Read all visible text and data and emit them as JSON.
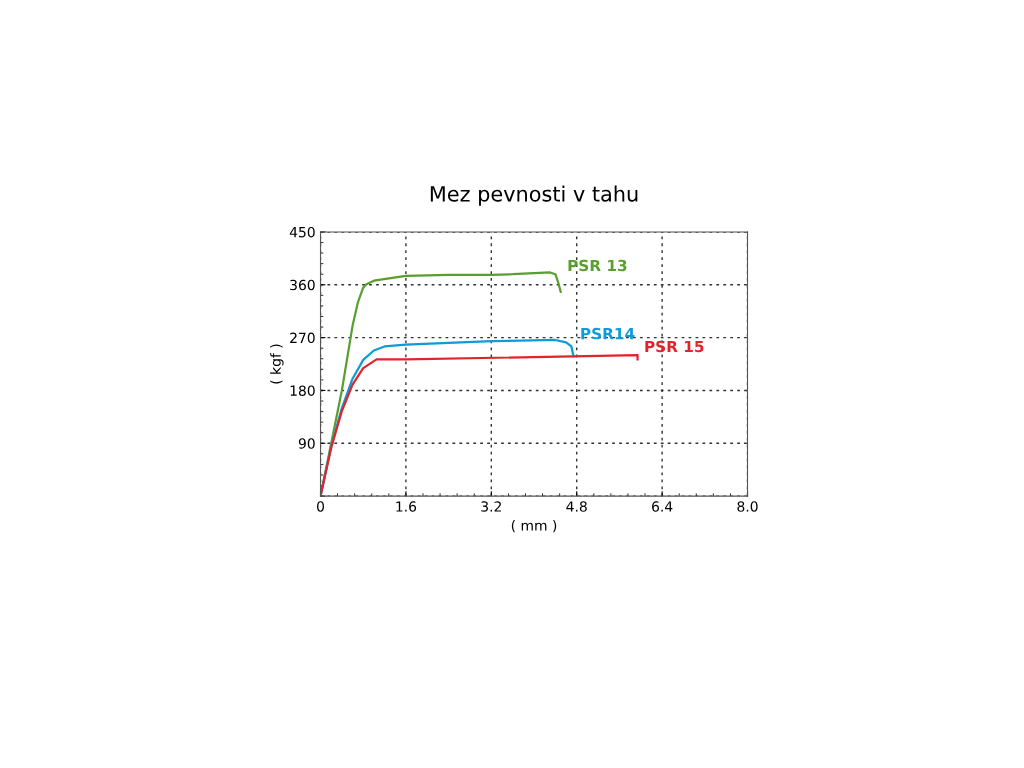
{
  "chart_data": {
    "type": "line",
    "title": "Mez pevnosti v tahu",
    "xlabel": "( mm )",
    "ylabel": "( kgf )",
    "xlim": [
      0,
      8.0
    ],
    "xticks": [
      0,
      1.6,
      3.2,
      4.8,
      6.4,
      {
        "value": 8.0,
        "label": "8.0"
      }
    ],
    "ylim": [
      0,
      450
    ],
    "yticks": [
      {
        "value": 0,
        "label": null
      },
      90,
      180,
      270,
      360,
      450
    ],
    "grid": true,
    "line_style": "solid",
    "legend": false,
    "series": [
      {
        "name": "PSR 13",
        "color": "#5a9e2f",
        "x": [
          0,
          0.2,
          0.4,
          0.6,
          0.7,
          0.8,
          0.86,
          1.0,
          1.6,
          2.4,
          3.2,
          3.6,
          4.0,
          4.3,
          4.4,
          4.45,
          4.5
        ],
        "values": [
          0,
          90,
          180,
          290,
          330,
          355,
          361,
          367,
          375,
          377,
          377,
          378,
          380,
          381,
          378,
          365,
          348
        ]
      },
      {
        "name": "PSR14",
        "color": "#0f9ad8",
        "x": [
          0,
          0.2,
          0.4,
          0.6,
          0.8,
          1.0,
          1.2,
          1.6,
          3.2,
          4.4,
          4.6,
          4.7,
          4.74
        ],
        "values": [
          0,
          85,
          150,
          200,
          232,
          248,
          255,
          258,
          264,
          266,
          262,
          255,
          238
        ]
      },
      {
        "name": "PSR 15",
        "color": "#e0242c",
        "x": [
          0,
          0.2,
          0.4,
          0.6,
          0.8,
          1.05,
          1.6,
          5.94,
          5.94
        ],
        "values": [
          0,
          82,
          145,
          190,
          218,
          233,
          233,
          240,
          233
        ]
      }
    ]
  }
}
